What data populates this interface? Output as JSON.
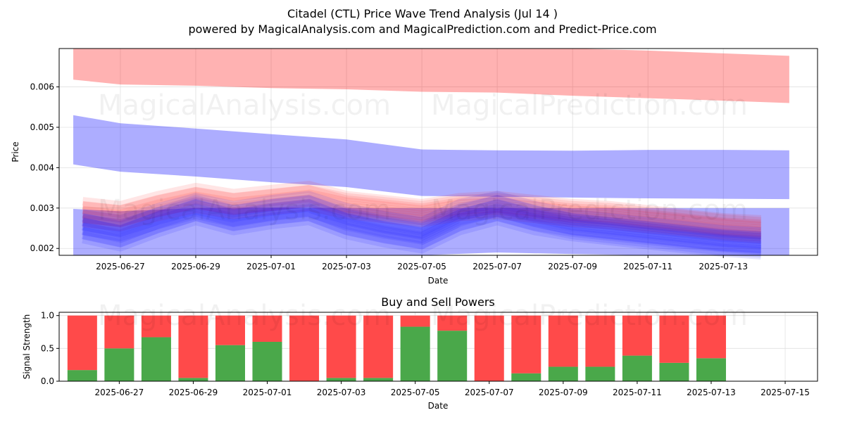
{
  "header": {
    "title": "Citadel (CTL) Price Wave Trend Analysis (Jul 14 )",
    "subtitle": "powered by MagicalAnalysis.com and MagicalPrediction.com and Predict-Price.com"
  },
  "watermarks": [
    "MagicalAnalysis.com",
    "MagicalPrediction.com"
  ],
  "colors": {
    "red_band": "#ff0000",
    "blue_band": "#0000ff",
    "buy": "#4aa84a",
    "sell": "#ff4a4a",
    "grid": "#e0e0e0"
  },
  "chart_data": [
    {
      "type": "area",
      "title": "",
      "xlabel": "Date",
      "ylabel": "Price",
      "ylim": [
        0.00183,
        0.00695
      ],
      "yticks": [
        0.002,
        0.003,
        0.004,
        0.005,
        0.006
      ],
      "ytick_labels": [
        "0.002",
        "0.003",
        "0.004",
        "0.005",
        "0.006"
      ],
      "xlim": [
        "2025-06-25T09:00",
        "2025-07-15T12:00"
      ],
      "xticks": [
        "2025-06-27",
        "2025-06-29",
        "2025-07-01",
        "2025-07-03",
        "2025-07-05",
        "2025-07-07",
        "2025-07-09",
        "2025-07-11",
        "2025-07-13"
      ],
      "grid": true,
      "bands": [
        {
          "color": "red",
          "x": [
            "2025-06-25T18:00",
            "2025-06-27",
            "2025-06-29",
            "2025-07-01",
            "2025-07-03",
            "2025-07-05",
            "2025-07-07",
            "2025-07-09",
            "2025-07-11",
            "2025-07-13",
            "2025-07-14T18:00"
          ],
          "lower": [
            0.00618,
            0.00606,
            0.00603,
            0.00597,
            0.00594,
            0.00588,
            0.00586,
            0.00578,
            0.00572,
            0.00566,
            0.0056
          ],
          "upper": [
            0.007,
            0.007,
            0.007,
            0.007,
            0.007,
            0.007,
            0.007,
            0.00698,
            0.0069,
            0.00683,
            0.00677
          ]
        },
        {
          "color": "blue",
          "x": [
            "2025-06-25T18:00",
            "2025-06-27",
            "2025-06-29",
            "2025-07-01",
            "2025-07-03",
            "2025-07-05",
            "2025-07-07",
            "2025-07-09",
            "2025-07-11",
            "2025-07-13",
            "2025-07-14T18:00"
          ],
          "lower": [
            0.00408,
            0.0039,
            0.00378,
            0.00364,
            0.00352,
            0.0033,
            0.00328,
            0.00326,
            0.00324,
            0.00323,
            0.00322
          ],
          "upper": [
            0.0053,
            0.0051,
            0.00497,
            0.00483,
            0.0047,
            0.00445,
            0.00443,
            0.00442,
            0.00444,
            0.00444,
            0.00443
          ]
        },
        {
          "color": "blue",
          "x": [
            "2025-06-25T18:00",
            "2025-06-27",
            "2025-06-29",
            "2025-07-01",
            "2025-07-03",
            "2025-07-05",
            "2025-07-07",
            "2025-07-09",
            "2025-07-11",
            "2025-07-13",
            "2025-07-14T18:00"
          ],
          "lower": [
            0.00175,
            0.00178,
            0.0018,
            0.00183,
            0.00178,
            0.00178,
            0.0019,
            0.00186,
            0.00182,
            0.00178,
            0.00176
          ],
          "upper": [
            0.00298,
            0.00292,
            0.003,
            0.00301,
            0.003,
            0.003,
            0.003,
            0.003,
            0.003,
            0.003,
            0.003
          ]
        }
      ],
      "wave_x": [
        "2025-06-26",
        "2025-06-27",
        "2025-06-28",
        "2025-06-29",
        "2025-06-30",
        "2025-07-01",
        "2025-07-02",
        "2025-07-03",
        "2025-07-04",
        "2025-07-05",
        "2025-07-06",
        "2025-07-07",
        "2025-07-08",
        "2025-07-09",
        "2025-07-10",
        "2025-07-11",
        "2025-07-12",
        "2025-07-13",
        "2025-07-14"
      ],
      "series": [
        {
          "color": "red",
          "values": [
            0.00295,
            0.00285,
            0.0031,
            0.0033,
            0.00315,
            0.00325,
            0.00335,
            0.0031,
            0.003,
            0.0029,
            0.00305,
            0.0031,
            0.003,
            0.0029,
            0.00285,
            0.00275,
            0.00265,
            0.00255,
            0.0025
          ]
        },
        {
          "color": "red",
          "values": [
            0.00285,
            0.00275,
            0.003,
            0.0032,
            0.00305,
            0.00315,
            0.00325,
            0.00305,
            0.00295,
            0.00285,
            0.003,
            0.00305,
            0.00295,
            0.00285,
            0.0028,
            0.0027,
            0.00262,
            0.00252,
            0.00245
          ]
        },
        {
          "color": "blue",
          "values": [
            0.00255,
            0.00235,
            0.0027,
            0.003,
            0.00275,
            0.0029,
            0.003,
            0.00265,
            0.00245,
            0.0023,
            0.00275,
            0.003,
            0.00275,
            0.00255,
            0.00245,
            0.00235,
            0.00225,
            0.00215,
            0.0021
          ]
        },
        {
          "color": "blue",
          "values": [
            0.00265,
            0.0025,
            0.0028,
            0.00305,
            0.00285,
            0.003,
            0.0031,
            0.0028,
            0.0026,
            0.00245,
            0.0029,
            0.0031,
            0.00285,
            0.00265,
            0.00255,
            0.00245,
            0.00235,
            0.00225,
            0.0022
          ]
        },
        {
          "color": "blue",
          "values": [
            0.00245,
            0.00225,
            0.0026,
            0.0029,
            0.00265,
            0.0028,
            0.0029,
            0.00255,
            0.00235,
            0.0022,
            0.00265,
            0.0029,
            0.00265,
            0.0025,
            0.0024,
            0.0023,
            0.0022,
            0.00212,
            0.00205
          ]
        }
      ]
    },
    {
      "type": "bar",
      "title": "Buy and Sell Powers",
      "xlabel": "Date",
      "ylabel": "Signal Strength",
      "ylim": [
        0.0,
        1.05
      ],
      "yticks": [
        0.0,
        0.5,
        1.0
      ],
      "ytick_labels": [
        "0.0",
        "0.5",
        "1.0"
      ],
      "xlim": [
        "2025-06-25T09:00",
        "2025-07-15T21:00"
      ],
      "xticks": [
        "2025-06-27",
        "2025-06-29",
        "2025-07-01",
        "2025-07-03",
        "2025-07-05",
        "2025-07-07",
        "2025-07-09",
        "2025-07-11",
        "2025-07-13",
        "2025-07-15"
      ],
      "grid": true,
      "categories": [
        "2025-06-26",
        "2025-06-27",
        "2025-06-28",
        "2025-06-29",
        "2025-06-30",
        "2025-07-01",
        "2025-07-02",
        "2025-07-03",
        "2025-07-04",
        "2025-07-05",
        "2025-07-06",
        "2025-07-07",
        "2025-07-08",
        "2025-07-09",
        "2025-07-10",
        "2025-07-11",
        "2025-07-12",
        "2025-07-13",
        "2025-07-14"
      ],
      "series": [
        {
          "color": "green",
          "values": [
            0.17,
            0.5,
            0.67,
            0.05,
            0.55,
            0.6,
            0.0,
            0.05,
            0.05,
            0.83,
            0.77,
            0.0,
            0.12,
            0.22,
            0.22,
            0.39,
            0.28,
            0.35,
            null
          ]
        },
        {
          "color": "red",
          "values": [
            0.83,
            0.5,
            0.33,
            0.95,
            0.45,
            0.4,
            1.0,
            0.95,
            0.95,
            0.17,
            0.23,
            1.0,
            0.88,
            0.78,
            0.78,
            0.61,
            0.72,
            0.65,
            null
          ]
        }
      ]
    }
  ]
}
